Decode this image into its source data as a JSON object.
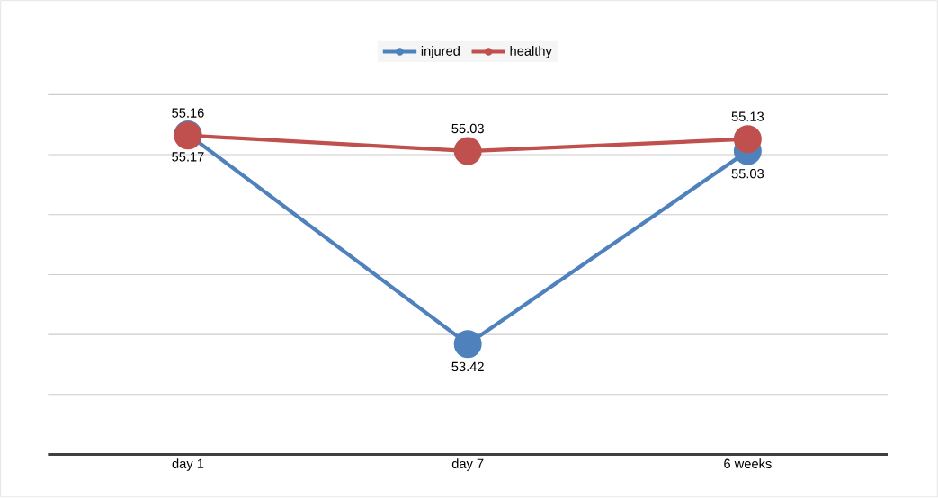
{
  "chart_data": {
    "type": "line",
    "categories": [
      "day 1",
      "day 7",
      "6 weeks"
    ],
    "series": [
      {
        "name": "injured",
        "color": "#4f81bd",
        "values": [
          55.17,
          53.42,
          55.03
        ]
      },
      {
        "name": "healthy",
        "color": "#c0504d",
        "values": [
          55.16,
          55.03,
          55.13
        ]
      }
    ],
    "yticks": [
      {
        "value": 52.5,
        "label": null
      },
      {
        "value": 53,
        "label": null
      },
      {
        "value": 53.5,
        "label": null
      },
      {
        "value": 54,
        "label": null
      },
      {
        "value": 54.5,
        "label": null
      },
      {
        "value": 55,
        "label": null
      },
      {
        "value": 55.5,
        "label": null
      }
    ],
    "tick_labels": "x",
    "grid": "y",
    "legend": "top",
    "marker": "circle",
    "line_style": "solid",
    "data_labels": true
  }
}
